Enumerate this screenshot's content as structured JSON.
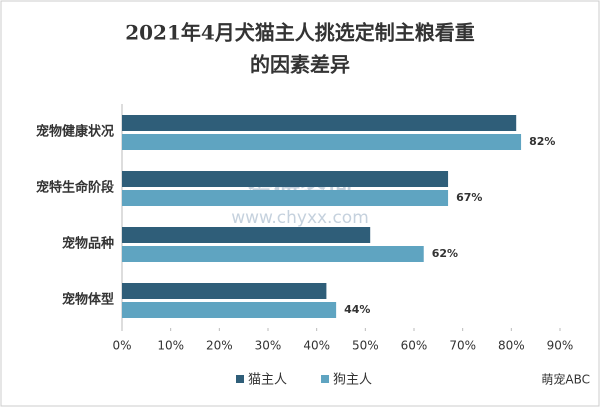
{
  "chart_data": {
    "type": "hbar",
    "title": [
      "2021年4月犬猫主人挑选定制主粮看重",
      "的因素差异"
    ],
    "categories": [
      "宠物健康状况",
      "宠特生命阶段",
      "宠物品种",
      "宠物体型"
    ],
    "series": [
      {
        "name": "猫主人",
        "color": "#2f5e79",
        "values": [
          81,
          67,
          51,
          42
        ]
      },
      {
        "name": "狗主人",
        "color": "#5fa4c1",
        "values": [
          82,
          67,
          62,
          44
        ],
        "value_labels": [
          "82%",
          "67%",
          "62%",
          "44%"
        ]
      }
    ],
    "xlim": [
      0,
      90
    ],
    "xticks": [
      {
        "value": 0,
        "label": "0%"
      },
      {
        "value": 10,
        "label": "10%"
      },
      {
        "value": 20,
        "label": "20%"
      },
      {
        "value": 30,
        "label": "30%"
      },
      {
        "value": 40,
        "label": "40%"
      },
      {
        "value": 50,
        "label": "50%"
      },
      {
        "value": 60,
        "label": "60%"
      },
      {
        "value": 70,
        "label": "70%"
      },
      {
        "value": 80,
        "label": "80%"
      },
      {
        "value": 90,
        "label": "90%"
      }
    ],
    "legend": "bottom",
    "annotations": [
      "智研咨询",
      "www.chyxx.com",
      "萌宠ABC"
    ]
  }
}
